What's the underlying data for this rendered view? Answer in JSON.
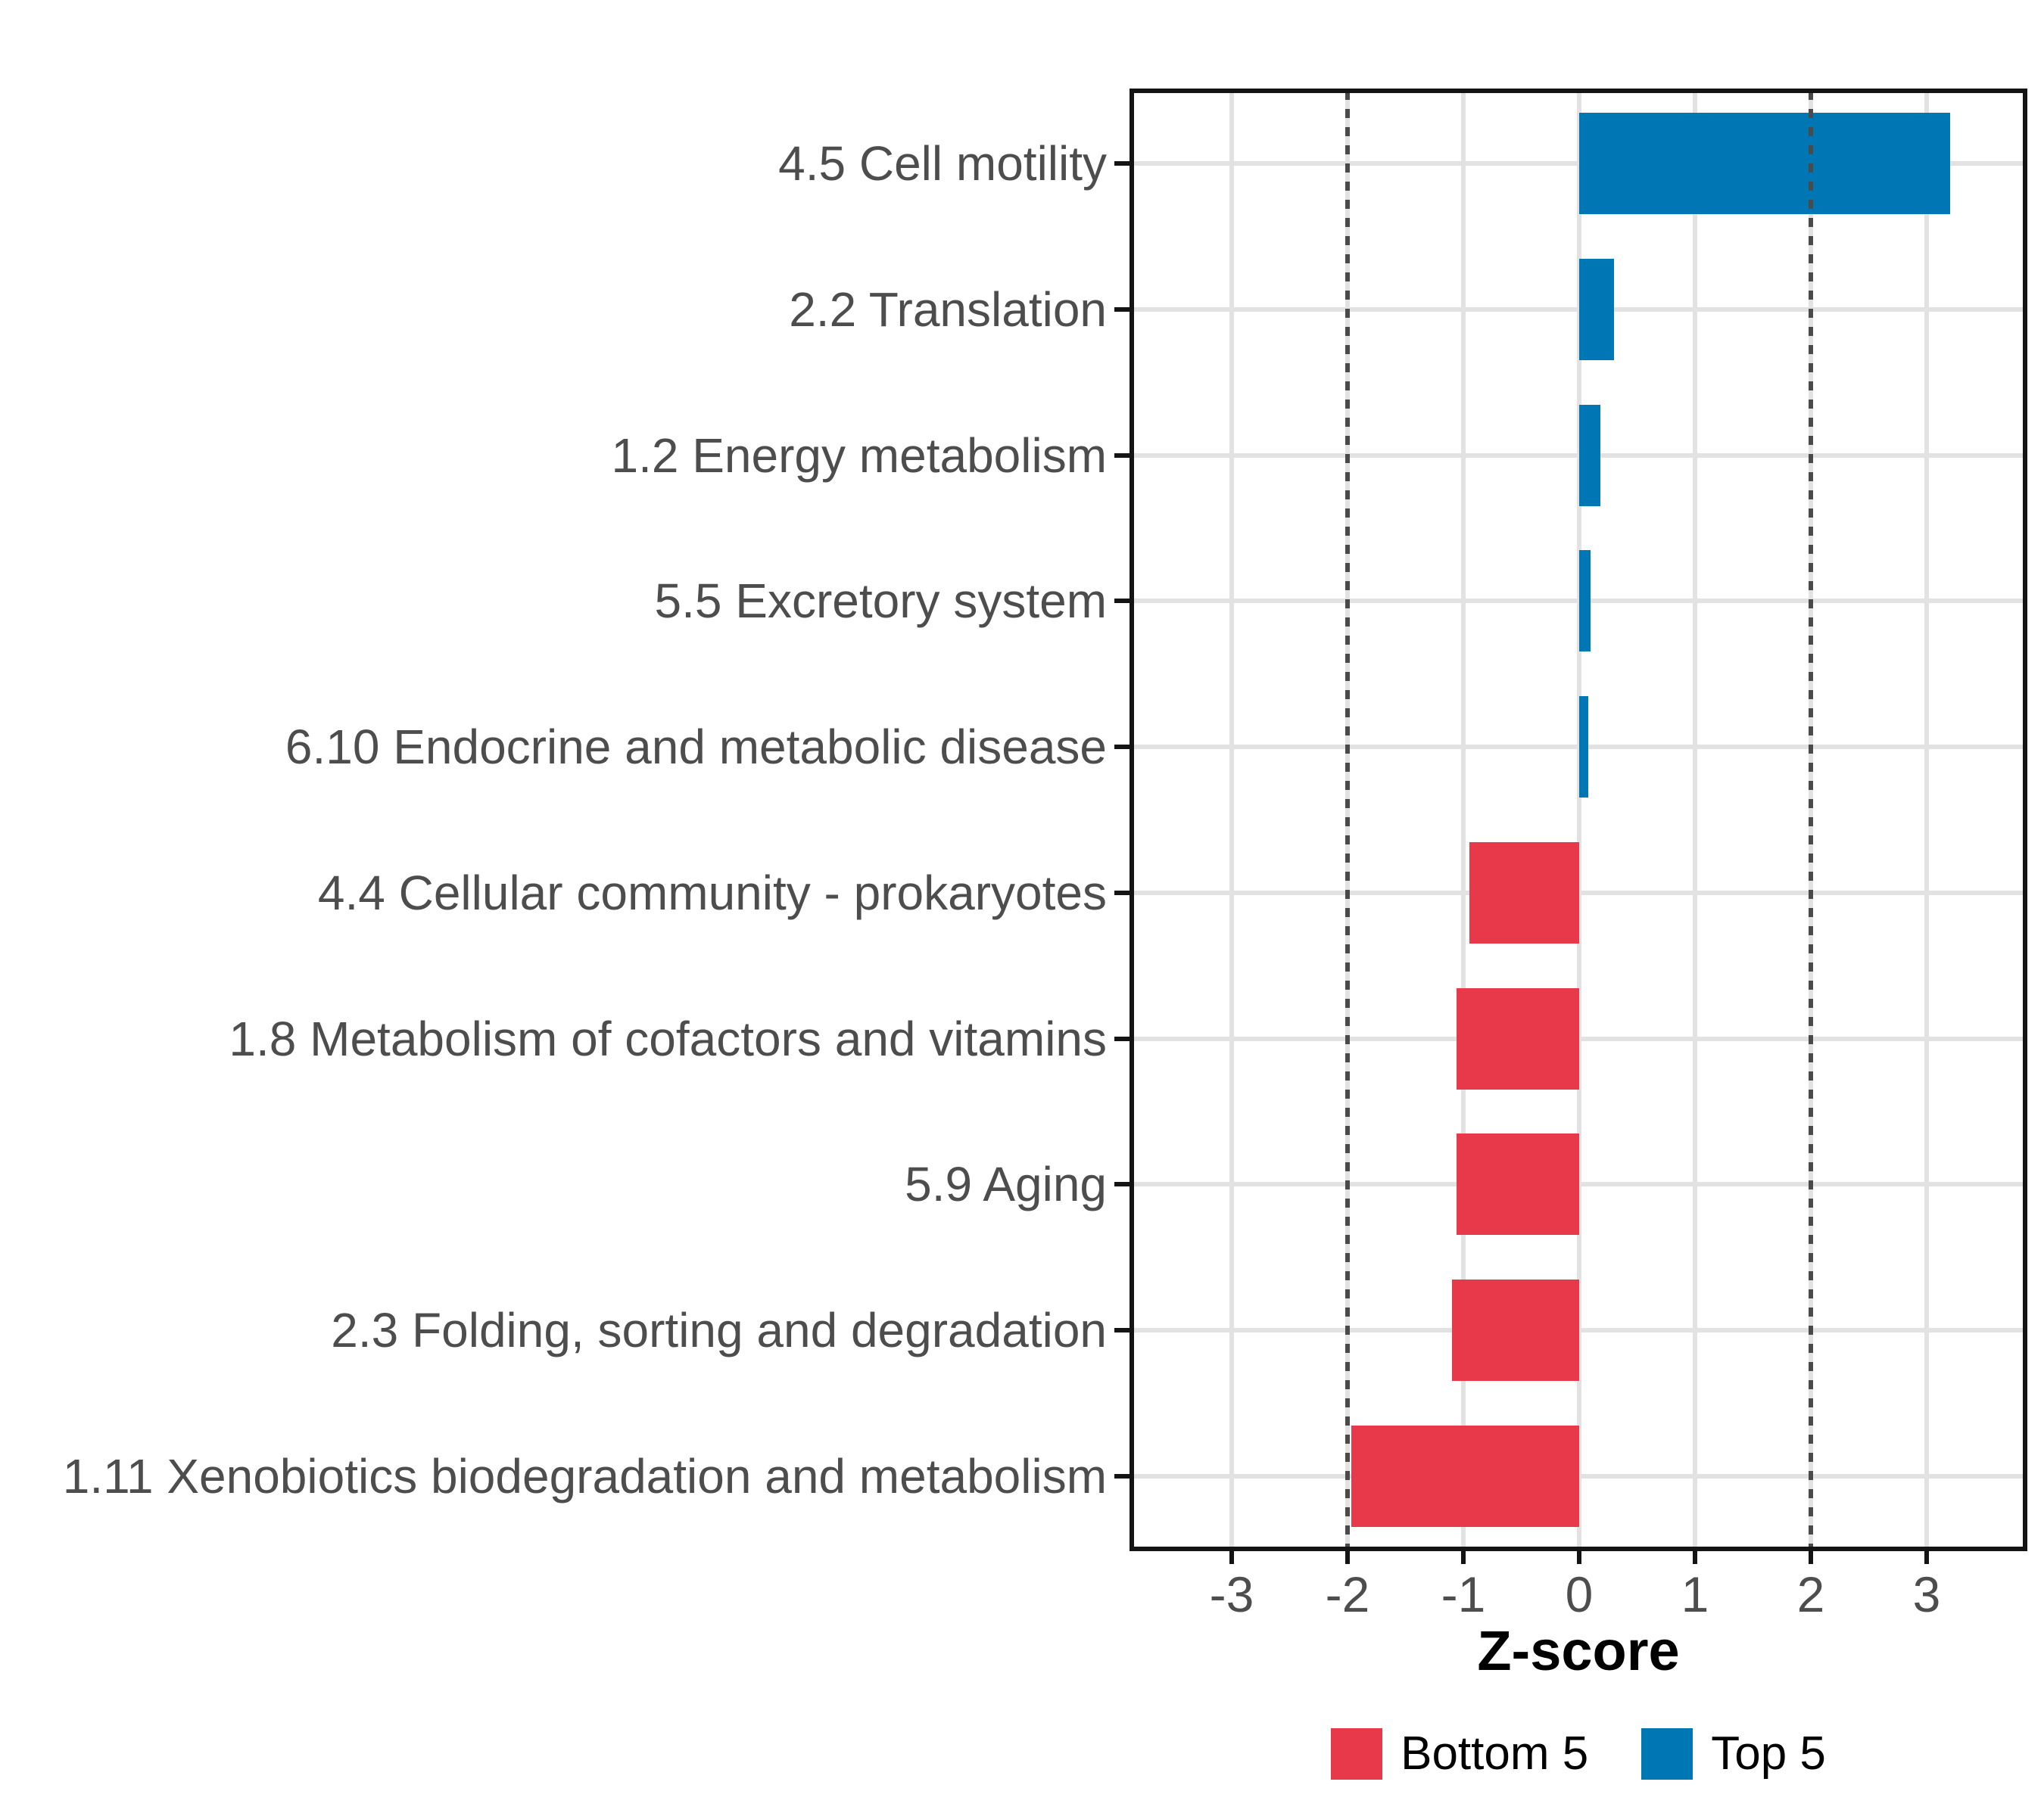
{
  "figure": {
    "x_axis_title": "Z-score"
  },
  "legend": {
    "items": [
      {
        "label": "Bottom 5",
        "color": "#E8394A"
      },
      {
        "label": "Top 5",
        "color": "#0077B5"
      }
    ]
  },
  "colors": {
    "top5_blue": "#0077B5",
    "bottom5_red": "#E8394A",
    "gridline": "#E2E2E2",
    "reference_line": "#4A4A4A",
    "axis_text": "#4D4D4D",
    "axis_line": "#141414",
    "background": "#FFFFFF"
  },
  "chart_data": {
    "type": "bar",
    "orientation": "horizontal",
    "title": "",
    "xlabel": "Z-score",
    "ylabel": "",
    "xlim": [
      -3.85,
      3.85
    ],
    "x_ticks": [
      -3,
      -2,
      -1,
      0,
      1,
      2,
      3
    ],
    "x_tick_labels": [
      "-3",
      "-2",
      "-1",
      "0",
      "1",
      "2",
      "3"
    ],
    "reference_lines_x": [
      -2,
      2
    ],
    "reference_line_style": "dashed",
    "grid": true,
    "legend_position": "bottom",
    "categories": [
      "4.5 Cell motility",
      "2.2 Translation",
      "1.2 Energy metabolism",
      "5.5 Excretory system",
      "6.10 Endocrine and metabolic disease",
      "4.4 Cellular community - prokaryotes",
      "1.8 Metabolism of cofactors and vitamins",
      "5.9 Aging",
      "2.3 Folding, sorting and degradation",
      "1.11 Xenobiotics biodegradation and metabolism"
    ],
    "values": [
      3.2,
      0.3,
      0.18,
      0.1,
      0.08,
      -0.95,
      -1.06,
      -1.06,
      -1.1,
      -1.97
    ],
    "groups": [
      "Top 5",
      "Top 5",
      "Top 5",
      "Top 5",
      "Top 5",
      "Bottom 5",
      "Bottom 5",
      "Bottom 5",
      "Bottom 5",
      "Bottom 5"
    ],
    "group_colors": {
      "Top 5": "#0077B5",
      "Bottom 5": "#E8394A"
    }
  }
}
